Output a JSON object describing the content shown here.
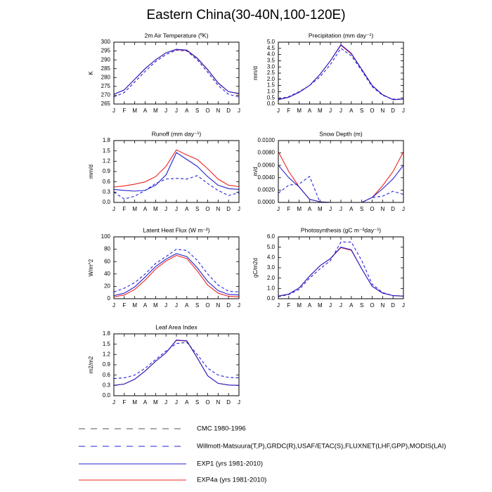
{
  "title": "Eastern China(30-40N,100-120E)",
  "legend": [
    {
      "name": "CMC 1980-1996",
      "color": "#555555",
      "dashed": true
    },
    {
      "name": "Willmott-Matsuura(T,P),GRDC(R),USAF/ETAC(S),FLUXNET(LHF,GPP),MODIS(LAI)",
      "color": "#2222dd",
      "dashed": true
    },
    {
      "name": "EXP1 (yrs 1981-2010)",
      "color": "#2222cc",
      "dashed": false
    },
    {
      "name": "EXP4a (yrs 1981-2010)",
      "color": "#ee2222",
      "dashed": false
    }
  ],
  "chart_data": [
    {
      "type": "line",
      "title": "2m Air Temperature (ºK)",
      "ylabel": "K",
      "categories": [
        "J",
        "F",
        "M",
        "A",
        "M",
        "J",
        "J",
        "A",
        "S",
        "O",
        "N",
        "D",
        "J"
      ],
      "ylim": [
        265,
        300
      ],
      "yticks": [
        265,
        270,
        275,
        280,
        285,
        290,
        295,
        300
      ],
      "series": [
        {
          "name": "Willmott-Matsuura(T,P),GRDC(R),USAF/ETAC(S),FLUXNET(LHF,GPP),MODIS(LAI)",
          "values": [
            269,
            271.5,
            277.5,
            283.5,
            289,
            293,
            295.5,
            295,
            290,
            283,
            275.5,
            270.5,
            269
          ]
        },
        {
          "name": "EXP4a (yrs 1981-2010)",
          "values": [
            270.5,
            273,
            279,
            285,
            290,
            294,
            295.8,
            295.3,
            290.8,
            284.3,
            276.8,
            272,
            270.8
          ]
        },
        {
          "name": "EXP1 (yrs 1981-2010)",
          "values": [
            270.5,
            273,
            279,
            285,
            290,
            294,
            296,
            295.5,
            291,
            284.5,
            277,
            272,
            271
          ]
        }
      ]
    },
    {
      "type": "line",
      "title": "Precipitation (mm day⁻¹)",
      "ylabel": "mm/d",
      "categories": [
        "J",
        "F",
        "M",
        "A",
        "M",
        "J",
        "J",
        "A",
        "S",
        "O",
        "N",
        "D",
        "J"
      ],
      "ylim": [
        0,
        5
      ],
      "yticks": [
        {
          "value": 0,
          "label": "0.0"
        },
        {
          "value": 0.5,
          "label": "0.5"
        },
        {
          "value": 1,
          "label": "1.0"
        },
        {
          "value": 1.5,
          "label": "1.5"
        },
        {
          "value": 2,
          "label": "2.0"
        },
        {
          "value": 2.5,
          "label": "2.5"
        },
        {
          "value": 3,
          "label": "3.0"
        },
        {
          "value": 3.5,
          "label": "3.5"
        },
        {
          "value": 4,
          "label": "4.0"
        },
        {
          "value": 4.5,
          "label": "4.5"
        },
        {
          "value": 5,
          "label": "5.0"
        }
      ],
      "series": [
        {
          "name": "Willmott-Matsuura(T,P),GRDC(R),USAF/ETAC(S),FLUXNET(LHF,GPP),MODIS(LAI)",
          "values": [
            0.4,
            0.6,
            1.0,
            1.5,
            2.2,
            3.2,
            4.5,
            3.9,
            2.7,
            1.4,
            0.7,
            0.4,
            0.4
          ]
        },
        {
          "name": "EXP4a (yrs 1981-2010)",
          "values": [
            0.35,
            0.55,
            0.95,
            1.5,
            2.4,
            3.5,
            4.75,
            4.05,
            2.8,
            1.5,
            0.75,
            0.35,
            0.4
          ]
        },
        {
          "name": "EXP1 (yrs 1981-2010)",
          "values": [
            0.35,
            0.55,
            0.95,
            1.5,
            2.4,
            3.5,
            4.8,
            4.1,
            2.8,
            1.5,
            0.75,
            0.35,
            0.4
          ]
        }
      ]
    },
    {
      "type": "line",
      "title": "Runoff (mm day⁻¹)",
      "ylabel": "mm/d",
      "categories": [
        "J",
        "F",
        "M",
        "A",
        "M",
        "J",
        "J",
        "A",
        "S",
        "O",
        "N",
        "D",
        "J"
      ],
      "ylim": [
        0,
        1.8
      ],
      "yticks": [
        {
          "value": 0,
          "label": "0.0"
        },
        {
          "value": 0.3,
          "label": "0.3"
        },
        {
          "value": 0.6,
          "label": "0.6"
        },
        {
          "value": 0.9,
          "label": "0.9"
        },
        {
          "value": 1.2,
          "label": "1.2"
        },
        {
          "value": 1.5,
          "label": "1.5"
        },
        {
          "value": 1.8,
          "label": "1.8"
        }
      ],
      "series": [
        {
          "name": "Willmott-Matsuura(T,P),GRDC(R),USAF/ETAC(S),FLUXNET(LHF,GPP),MODIS(LAI)",
          "values": [
            0.3,
            0.1,
            0.18,
            0.35,
            0.55,
            0.68,
            0.7,
            0.68,
            0.78,
            0.55,
            0.35,
            0.2,
            0.28
          ]
        },
        {
          "name": "EXP4a (yrs 1981-2010)",
          "values": [
            0.45,
            0.48,
            0.53,
            0.6,
            0.75,
            1.05,
            1.53,
            1.38,
            1.25,
            0.98,
            0.68,
            0.5,
            0.46
          ]
        },
        {
          "name": "EXP1 (yrs 1981-2010)",
          "values": [
            0.38,
            0.35,
            0.33,
            0.35,
            0.5,
            0.8,
            1.45,
            1.25,
            1.05,
            0.75,
            0.5,
            0.4,
            0.38
          ]
        }
      ]
    },
    {
      "type": "line",
      "title": "Snow Depth (m)",
      "ylabel": "m/d",
      "categories": [
        "J",
        "F",
        "M",
        "A",
        "M",
        "J",
        "J",
        "A",
        "S",
        "O",
        "N",
        "D",
        "J"
      ],
      "ylim": [
        0,
        0.01
      ],
      "yticks": [
        {
          "value": 0,
          "label": "0.0000"
        },
        {
          "value": 0.002,
          "label": "0.0020"
        },
        {
          "value": 0.004,
          "label": "0.0040"
        },
        {
          "value": 0.006,
          "label": "0.0060"
        },
        {
          "value": 0.008,
          "label": "0.0080"
        },
        {
          "value": 0.01,
          "label": "0.0100"
        }
      ],
      "series": [
        {
          "name": "Willmott-Matsuura(T,P),GRDC(R),USAF/ETAC(S),FLUXNET(LHF,GPP),MODIS(LAI)",
          "values": [
            0.0015,
            0.0028,
            0.003,
            0.0042,
            0,
            0,
            0,
            0,
            0,
            0.0008,
            0.001,
            0.0018,
            0.0013
          ]
        },
        {
          "name": "EXP4a (yrs 1981-2010)",
          "values": [
            0.0082,
            0.005,
            0.0025,
            0.0005,
            0.0001,
            0,
            0,
            0,
            0,
            0.0008,
            0.0027,
            0.005,
            0.0082
          ]
        },
        {
          "name": "EXP1 (yrs 1981-2010)",
          "values": [
            0.006,
            0.004,
            0.0025,
            0.0005,
            0.0001,
            0,
            0,
            0,
            0,
            0.0008,
            0.0022,
            0.0038,
            0.006
          ]
        }
      ]
    },
    {
      "type": "line",
      "title": "Latent Heat Flux (W m⁻²)",
      "ylabel": "W/m^2",
      "categories": [
        "J",
        "F",
        "M",
        "A",
        "M",
        "J",
        "J",
        "A",
        "S",
        "O",
        "N",
        "D",
        "J"
      ],
      "ylim": [
        0,
        100
      ],
      "yticks": [
        0,
        20,
        40,
        60,
        80,
        100
      ],
      "series": [
        {
          "name": "Willmott-Matsuura(T,P),GRDC(R),USAF/ETAC(S),FLUXNET(LHF,GPP),MODIS(LAI)",
          "values": [
            11,
            17,
            26,
            40,
            57,
            68,
            80,
            78,
            62,
            40,
            22,
            12,
            11
          ]
        },
        {
          "name": "EXP4a (yrs 1981-2010)",
          "values": [
            3,
            6,
            15,
            30,
            48,
            61,
            70,
            65,
            45,
            22,
            9,
            4,
            3
          ]
        },
        {
          "name": "EXP1 (yrs 1981-2010)",
          "values": [
            5,
            9,
            19,
            35,
            52,
            64,
            73,
            68,
            50,
            28,
            13,
            7,
            6
          ]
        }
      ]
    },
    {
      "type": "line",
      "title": "Photosynthesis (gC m⁻²day⁻¹)",
      "ylabel": "gC/m2d",
      "categories": [
        "J",
        "F",
        "M",
        "A",
        "M",
        "J",
        "J",
        "A",
        "S",
        "O",
        "N",
        "D",
        "J"
      ],
      "ylim": [
        0,
        6
      ],
      "yticks": [
        {
          "value": 0,
          "label": "0.0"
        },
        {
          "value": 1,
          "label": "1.0"
        },
        {
          "value": 2,
          "label": "2.0"
        },
        {
          "value": 3,
          "label": "3.0"
        },
        {
          "value": 4,
          "label": "4.0"
        },
        {
          "value": 5,
          "label": "5.0"
        },
        {
          "value": 6,
          "label": "6.0"
        }
      ],
      "series": [
        {
          "name": "Willmott-Matsuura(T,P),GRDC(R),USAF/ETAC(S),FLUXNET(LHF,GPP),MODIS(LAI)",
          "values": [
            0.2,
            0.4,
            0.9,
            2.0,
            2.9,
            3.7,
            5.5,
            5.5,
            3.7,
            1.4,
            0.6,
            0.3,
            0.25
          ]
        },
        {
          "name": "EXP4a (yrs 1981-2010)",
          "values": [
            0.25,
            0.45,
            1.05,
            2.2,
            3.2,
            3.9,
            4.95,
            4.7,
            2.9,
            1.2,
            0.55,
            0.3,
            0.25
          ]
        },
        {
          "name": "EXP1 (yrs 1981-2010)",
          "values": [
            0.25,
            0.45,
            1.05,
            2.2,
            3.2,
            3.9,
            5.0,
            4.75,
            2.9,
            1.2,
            0.55,
            0.3,
            0.25
          ]
        }
      ]
    },
    {
      "type": "line",
      "title": "Leaf Area Index",
      "ylabel": "m2/m2",
      "categories": [
        "J",
        "F",
        "M",
        "A",
        "M",
        "J",
        "J",
        "A",
        "S",
        "O",
        "N",
        "D",
        "J"
      ],
      "ylim": [
        0,
        1.8
      ],
      "yticks": [
        {
          "value": 0,
          "label": "0.0"
        },
        {
          "value": 0.3,
          "label": "0.3"
        },
        {
          "value": 0.6,
          "label": "0.6"
        },
        {
          "value": 0.9,
          "label": "0.9"
        },
        {
          "value": 1.2,
          "label": "1.2"
        },
        {
          "value": 1.5,
          "label": "1.5"
        },
        {
          "value": 1.8,
          "label": "1.8"
        }
      ],
      "series": [
        {
          "name": "Willmott-Matsuura(T,P),GRDC(R),USAF/ETAC(S),FLUXNET(LHF,GPP),MODIS(LAI)",
          "values": [
            0.5,
            0.52,
            0.6,
            0.8,
            1.05,
            1.3,
            1.52,
            1.55,
            1.2,
            0.8,
            0.6,
            0.53,
            0.52
          ]
        },
        {
          "name": "EXP4a (yrs 1981-2010)",
          "values": [
            0.3,
            0.34,
            0.48,
            0.72,
            1.0,
            1.25,
            1.61,
            1.59,
            1.1,
            0.58,
            0.36,
            0.31,
            0.3
          ]
        },
        {
          "name": "EXP1 (yrs 1981-2010)",
          "values": [
            0.3,
            0.34,
            0.48,
            0.72,
            1.0,
            1.25,
            1.62,
            1.6,
            1.1,
            0.58,
            0.36,
            0.31,
            0.3
          ]
        }
      ]
    }
  ]
}
